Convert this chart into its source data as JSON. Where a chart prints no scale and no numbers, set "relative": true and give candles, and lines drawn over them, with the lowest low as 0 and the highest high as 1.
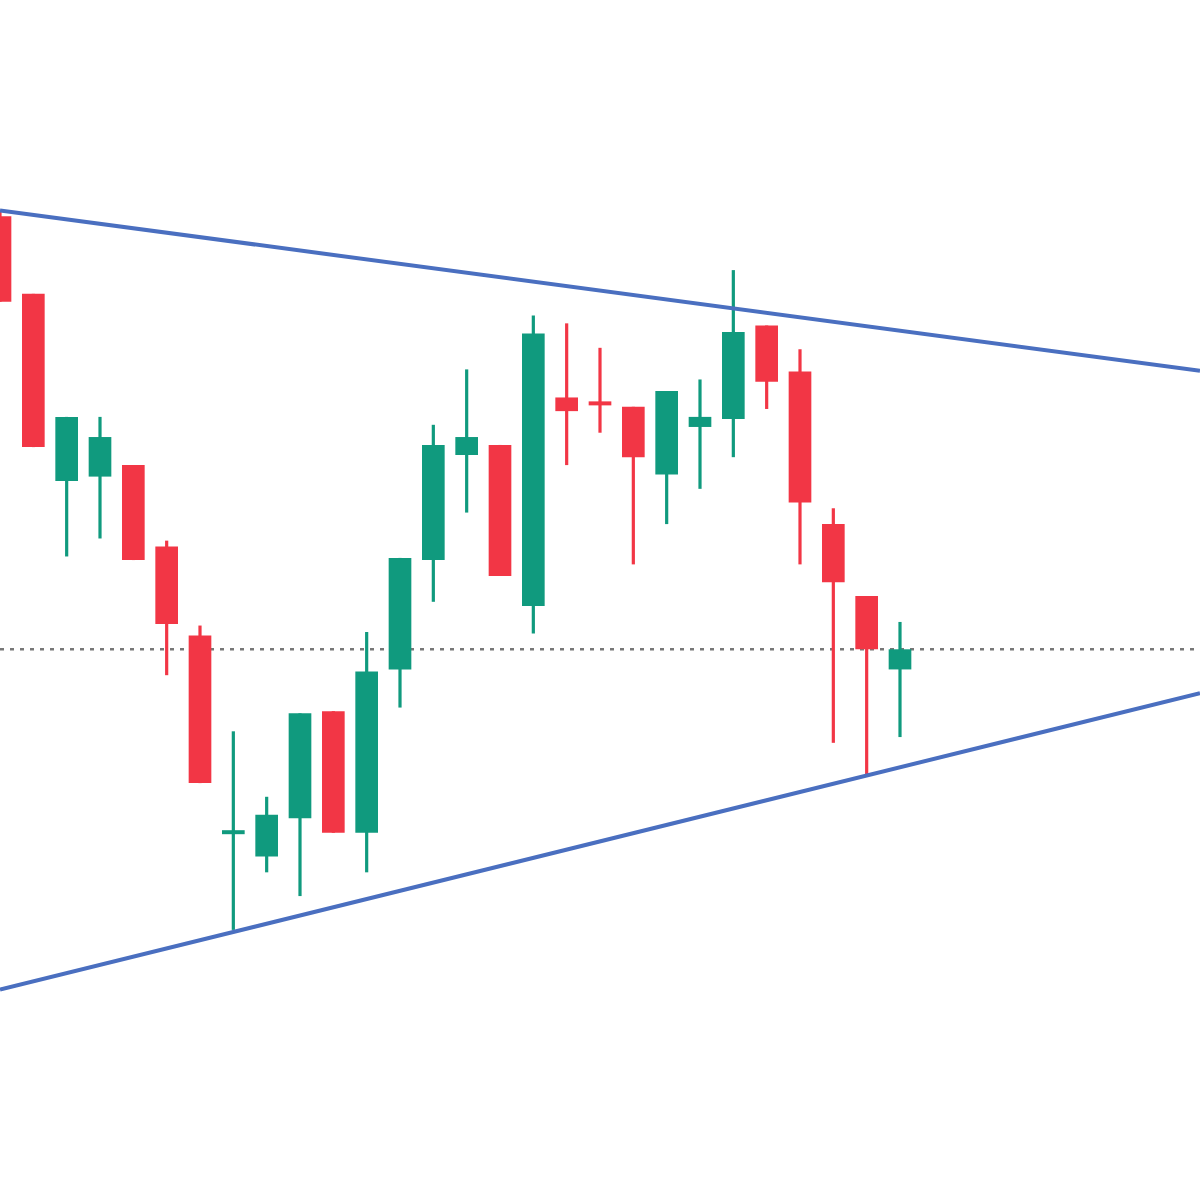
{
  "chart_data": {
    "type": "candlestick",
    "relative": true,
    "legend": false,
    "categories": [
      null,
      null,
      null,
      null,
      null,
      null,
      null,
      null,
      null,
      null,
      null,
      null,
      null,
      null,
      null,
      null,
      null,
      null,
      null,
      null,
      null,
      null,
      null,
      null,
      null,
      null,
      null,
      null,
      null,
      null,
      null,
      null,
      null,
      null,
      null,
      null,
      null
    ],
    "ohlc": [
      [
        0.992,
        1,
        0.873,
        0.873
      ],
      [
        0.884,
        0.884,
        0.671,
        0.671
      ],
      [
        0.624,
        0.713,
        0.519,
        0.713
      ],
      [
        0.63,
        0.713,
        0.544,
        0.685
      ],
      [
        0.646,
        0.646,
        0.514,
        0.514
      ],
      [
        0.533,
        0.541,
        0.354,
        0.425
      ],
      [
        0.409,
        0.423,
        0.204,
        0.204
      ],
      [
        0.133,
        0.276,
        0,
        0.135
      ],
      [
        0.102,
        0.185,
        0.08,
        0.16
      ],
      [
        0.155,
        0.301,
        0.047,
        0.301
      ],
      [
        0.304,
        0.304,
        0.135,
        0.135
      ],
      [
        0.135,
        0.414,
        0.08,
        0.359
      ],
      [
        0.362,
        0.517,
        0.309,
        0.517
      ],
      [
        0.514,
        0.702,
        0.456,
        0.674
      ],
      [
        0.66,
        0.779,
        0.58,
        0.685
      ],
      [
        0.674,
        0.674,
        0.492,
        0.492
      ],
      [
        0.45,
        0.854,
        0.412,
        0.829
      ],
      [
        0.74,
        0.843,
        0.646,
        0.721
      ],
      [
        0.732,
        0.809,
        0.691,
        0.729
      ],
      [
        0.727,
        0.727,
        0.508,
        0.657
      ],
      [
        0.633,
        0.749,
        0.564,
        0.749
      ],
      [
        0.699,
        0.765,
        0.613,
        0.713
      ],
      [
        0.71,
        0.917,
        0.657,
        0.831
      ],
      [
        0.84,
        0.84,
        0.724,
        0.762
      ],
      [
        0.776,
        0.807,
        0.508,
        0.594
      ],
      [
        0.564,
        0.586,
        0.26,
        0.483
      ],
      [
        0.464,
        0.464,
        0.213,
        0.39
      ],
      [
        0.362,
        0.428,
        0.268,
        0.39
      ],
      null,
      null,
      null,
      null,
      null,
      null,
      null,
      null,
      null
    ],
    "colors": [
      "#f23645",
      "#f23645",
      "#109a7e",
      "#109a7e",
      "#f23645",
      "#f23645",
      "#f23645",
      "#109a7e",
      "#109a7e",
      "#109a7e",
      "#f23645",
      "#109a7e",
      "#109a7e",
      "#109a7e",
      "#109a7e",
      "#f23645",
      "#109a7e",
      "#f23645",
      "#f23645",
      "#f23645",
      "#109a7e",
      "#109a7e",
      "#109a7e",
      "#f23645",
      "#f23645",
      "#f23645",
      "#f23645",
      "#109a7e",
      null,
      null,
      null,
      null,
      null,
      null,
      null,
      null,
      null
    ],
    "series": [
      {
        "type": "line",
        "color": "#4a6fc0",
        "values": [
          1,
          null,
          null,
          null,
          null,
          null,
          null,
          null,
          null,
          null,
          null,
          null,
          null,
          null,
          null,
          null,
          null,
          null,
          null,
          null,
          null,
          null,
          null,
          null,
          null,
          null,
          null,
          null,
          null,
          null,
          null,
          null,
          null,
          null,
          null,
          null,
          0.777
        ]
      },
      {
        "type": "line",
        "color": "#4a6fc0",
        "values": [
          -0.083,
          null,
          null,
          null,
          null,
          null,
          null,
          null,
          null,
          null,
          null,
          null,
          null,
          null,
          null,
          null,
          null,
          null,
          null,
          null,
          null,
          null,
          null,
          null,
          null,
          null,
          null,
          null,
          null,
          null,
          null,
          null,
          null,
          null,
          null,
          null,
          0.329
        ]
      }
    ],
    "ref_lines": [
      {
        "axis": "y",
        "value": 0.39,
        "color": "#777777",
        "line_style": "dotted"
      }
    ]
  }
}
